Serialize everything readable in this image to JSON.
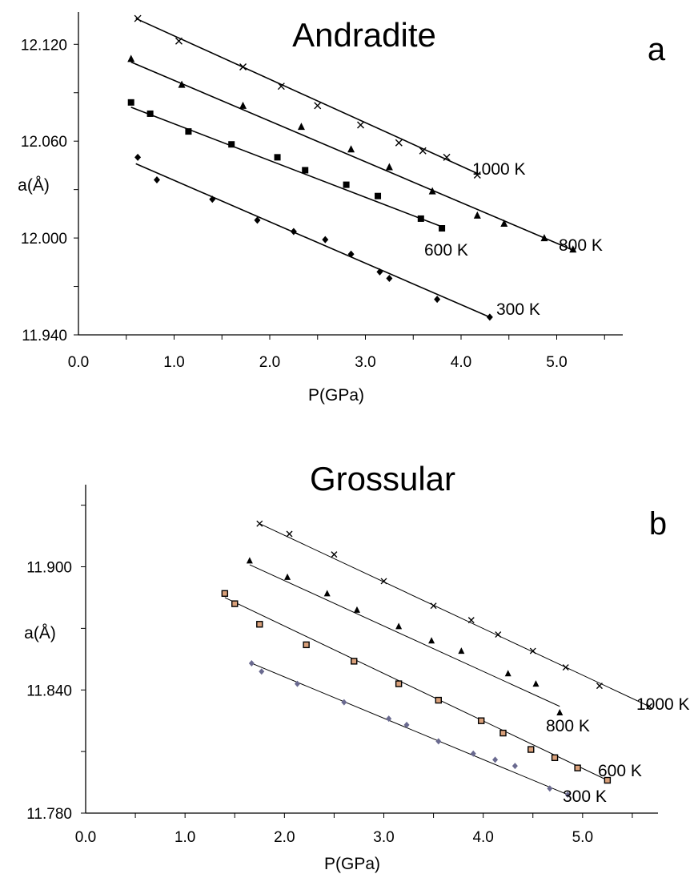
{
  "chart_data": [
    {
      "type": "scatter",
      "title": "Andradite",
      "panel_label": "a",
      "xlabel": "P(GPa)",
      "ylabel": "a(Å)",
      "xlim": [
        0,
        6
      ],
      "ylim": [
        11.94,
        12.14
      ],
      "xticks": [
        "0.0",
        "1.0",
        "2.0",
        "3.0",
        "4.0",
        "5.0"
      ],
      "yticks": [
        "11.940",
        "12.000",
        "12.060",
        "12.120"
      ],
      "grid": false,
      "line_color": "#000000",
      "series": [
        {
          "name": "1000 K",
          "marker": "cross",
          "color": "#000000",
          "x": [
            0.62,
            1.05,
            1.72,
            2.12,
            2.5,
            2.95,
            3.35,
            3.6,
            3.85,
            4.17
          ],
          "y": [
            12.136,
            12.122,
            12.106,
            12.094,
            12.082,
            12.07,
            12.059,
            12.054,
            12.05,
            12.039
          ],
          "fit": [
            [
              0.6,
              12.136
            ],
            [
              4.17,
              12.04
            ]
          ]
        },
        {
          "name": "800 K",
          "marker": "triangle",
          "color": "#000000",
          "x": [
            0.55,
            1.08,
            1.72,
            2.33,
            2.85,
            3.25,
            3.7,
            4.17,
            4.45,
            4.87,
            5.17
          ],
          "y": [
            12.111,
            12.095,
            12.082,
            12.069,
            12.055,
            12.044,
            12.029,
            12.014,
            12.009,
            12.0,
            11.993
          ],
          "fit": [
            [
              0.55,
              12.109
            ],
            [
              5.15,
              11.993
            ]
          ]
        },
        {
          "name": "600 K",
          "marker": "square",
          "color": "#000000",
          "x": [
            0.55,
            0.75,
            1.15,
            1.6,
            2.08,
            2.37,
            2.8,
            3.13,
            3.58,
            3.8
          ],
          "y": [
            12.084,
            12.077,
            12.066,
            12.058,
            12.05,
            12.042,
            12.033,
            12.026,
            12.012,
            12.006
          ],
          "fit": [
            [
              0.55,
              12.081
            ],
            [
              3.8,
              12.007
            ]
          ]
        },
        {
          "name": "300 K",
          "marker": "diamond",
          "color": "#000000",
          "x": [
            0.62,
            0.82,
            1.4,
            1.87,
            2.25,
            2.58,
            2.85,
            3.15,
            3.25,
            3.75,
            4.3
          ],
          "y": [
            12.05,
            12.036,
            12.024,
            12.011,
            12.004,
            11.999,
            11.99,
            11.979,
            11.975,
            11.962,
            11.951
          ],
          "fit": [
            [
              0.6,
              12.046
            ],
            [
              4.3,
              11.951
            ]
          ]
        }
      ]
    },
    {
      "type": "scatter",
      "title": "Grossular",
      "panel_label": "b",
      "xlabel": "P(GPa)",
      "ylabel": "a(Å)",
      "xlim": [
        0,
        6
      ],
      "ylim": [
        11.78,
        11.94
      ],
      "xticks": [
        "0.0",
        "1.0",
        "2.0",
        "3.0",
        "4.0",
        "5.0"
      ],
      "yticks": [
        "11.780",
        "11.840",
        "11.900"
      ],
      "grid": false,
      "line_color": "#000000",
      "series": [
        {
          "name": "1000 K",
          "marker": "cross",
          "color": "#000000",
          "x": [
            1.75,
            2.05,
            2.5,
            3.0,
            3.5,
            3.88,
            4.15,
            4.5,
            4.83,
            5.17,
            5.67
          ],
          "y": [
            11.921,
            11.916,
            11.906,
            11.893,
            11.881,
            11.874,
            11.867,
            11.859,
            11.851,
            11.842,
            11.832
          ],
          "fit": [
            [
              1.75,
              11.921
            ],
            [
              5.67,
              11.832
            ]
          ]
        },
        {
          "name": "800 K",
          "marker": "triangle",
          "color": "#000000",
          "x": [
            1.65,
            2.03,
            2.43,
            2.73,
            3.15,
            3.48,
            3.78,
            4.25,
            4.53,
            4.77
          ],
          "y": [
            11.903,
            11.895,
            11.887,
            11.879,
            11.871,
            11.864,
            11.859,
            11.848,
            11.843,
            11.829
          ],
          "fit": [
            [
              1.65,
              11.901
            ],
            [
              4.77,
              11.832
            ]
          ]
        },
        {
          "name": "600 K",
          "marker": "square",
          "color": "#000000",
          "fill": "#d9a07a",
          "x": [
            1.4,
            1.5,
            1.75,
            2.22,
            2.7,
            3.15,
            3.55,
            3.98,
            4.2,
            4.48,
            4.72,
            4.95,
            5.25
          ],
          "y": [
            11.887,
            11.882,
            11.872,
            11.862,
            11.854,
            11.843,
            11.835,
            11.825,
            11.819,
            11.811,
            11.807,
            11.802,
            11.796
          ],
          "fit": [
            [
              1.4,
              11.885
            ],
            [
              5.25,
              11.796
            ]
          ]
        },
        {
          "name": "300 K",
          "marker": "diamond",
          "color": "#6a6a90",
          "x": [
            1.67,
            1.77,
            2.13,
            2.6,
            3.05,
            3.23,
            3.55,
            3.9,
            4.12,
            4.32,
            4.67,
            4.85
          ],
          "y": [
            11.853,
            11.849,
            11.843,
            11.834,
            11.826,
            11.823,
            11.815,
            11.809,
            11.806,
            11.803,
            11.792,
            11.789
          ],
          "fit": [
            [
              1.67,
              11.853
            ],
            [
              4.85,
              11.789
            ]
          ]
        }
      ]
    }
  ]
}
